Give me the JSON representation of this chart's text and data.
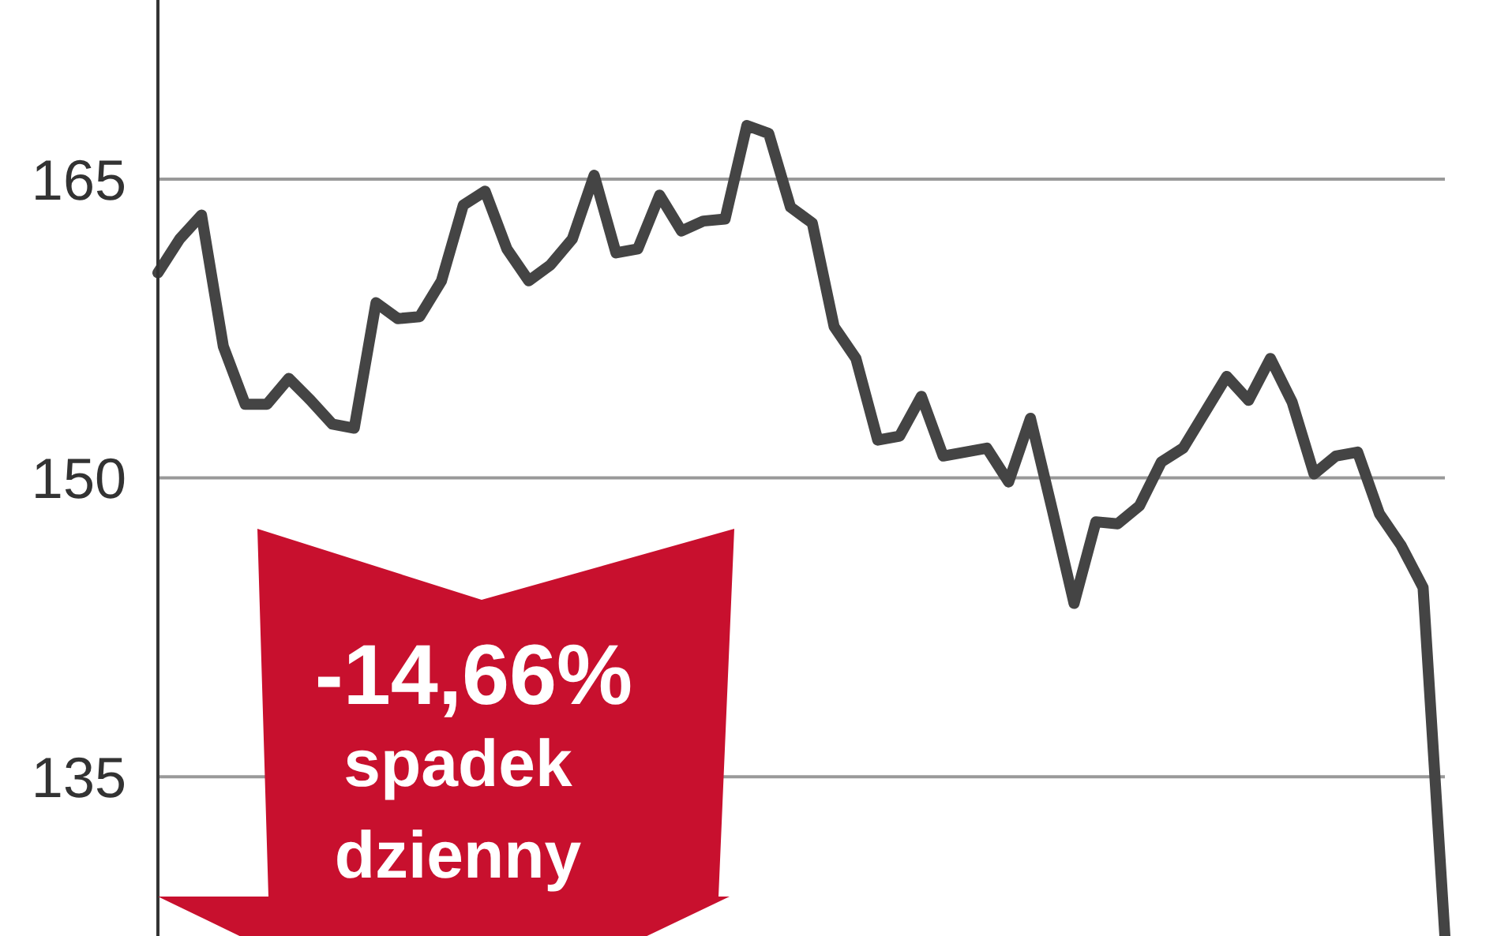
{
  "chart_data": {
    "type": "line",
    "categories": [
      null,
      null,
      null,
      null,
      null,
      null,
      null,
      null,
      null,
      null,
      null,
      null,
      null,
      null,
      null,
      null,
      null,
      null,
      null,
      null,
      null,
      null,
      null,
      null,
      null,
      null,
      null,
      null,
      null,
      null,
      null,
      null,
      null,
      null,
      null,
      null,
      null,
      null,
      null,
      null,
      null,
      null,
      null,
      null,
      null,
      null,
      null,
      null,
      null,
      null,
      null,
      null,
      null,
      null,
      null,
      null,
      null,
      null,
      null,
      null
    ],
    "series": [
      {
        "color": "#444444",
        "values": [
          160.3,
          162.0,
          163.2,
          156.6,
          153.7,
          153.7,
          155.0,
          153.9,
          152.7,
          152.5,
          158.8,
          158.0,
          158.1,
          159.9,
          163.7,
          164.4,
          161.5,
          159.9,
          160.7,
          162.0,
          165.2,
          161.3,
          161.5,
          164.2,
          162.4,
          162.9,
          163.0,
          167.7,
          167.3,
          163.6,
          162.8,
          157.6,
          156.0,
          151.9,
          152.1,
          154.1,
          151.1,
          151.3,
          151.5,
          149.8,
          153.0,
          148.4,
          143.7,
          147.8,
          147.7,
          148.6,
          150.8,
          151.5,
          153.3,
          155.1,
          153.9,
          156.0,
          153.8,
          150.2,
          151.1,
          151.3,
          148.2,
          146.6,
          144.5,
          127
        ]
      }
    ],
    "ylim": [
      127,
      174
    ],
    "yticks": [
      135,
      150,
      165
    ],
    "grid": "y",
    "tick_labels": "y",
    "marker": "none",
    "line_style": "solid",
    "annotations": [
      "-14,66%",
      "spadek dzienny"
    ]
  }
}
